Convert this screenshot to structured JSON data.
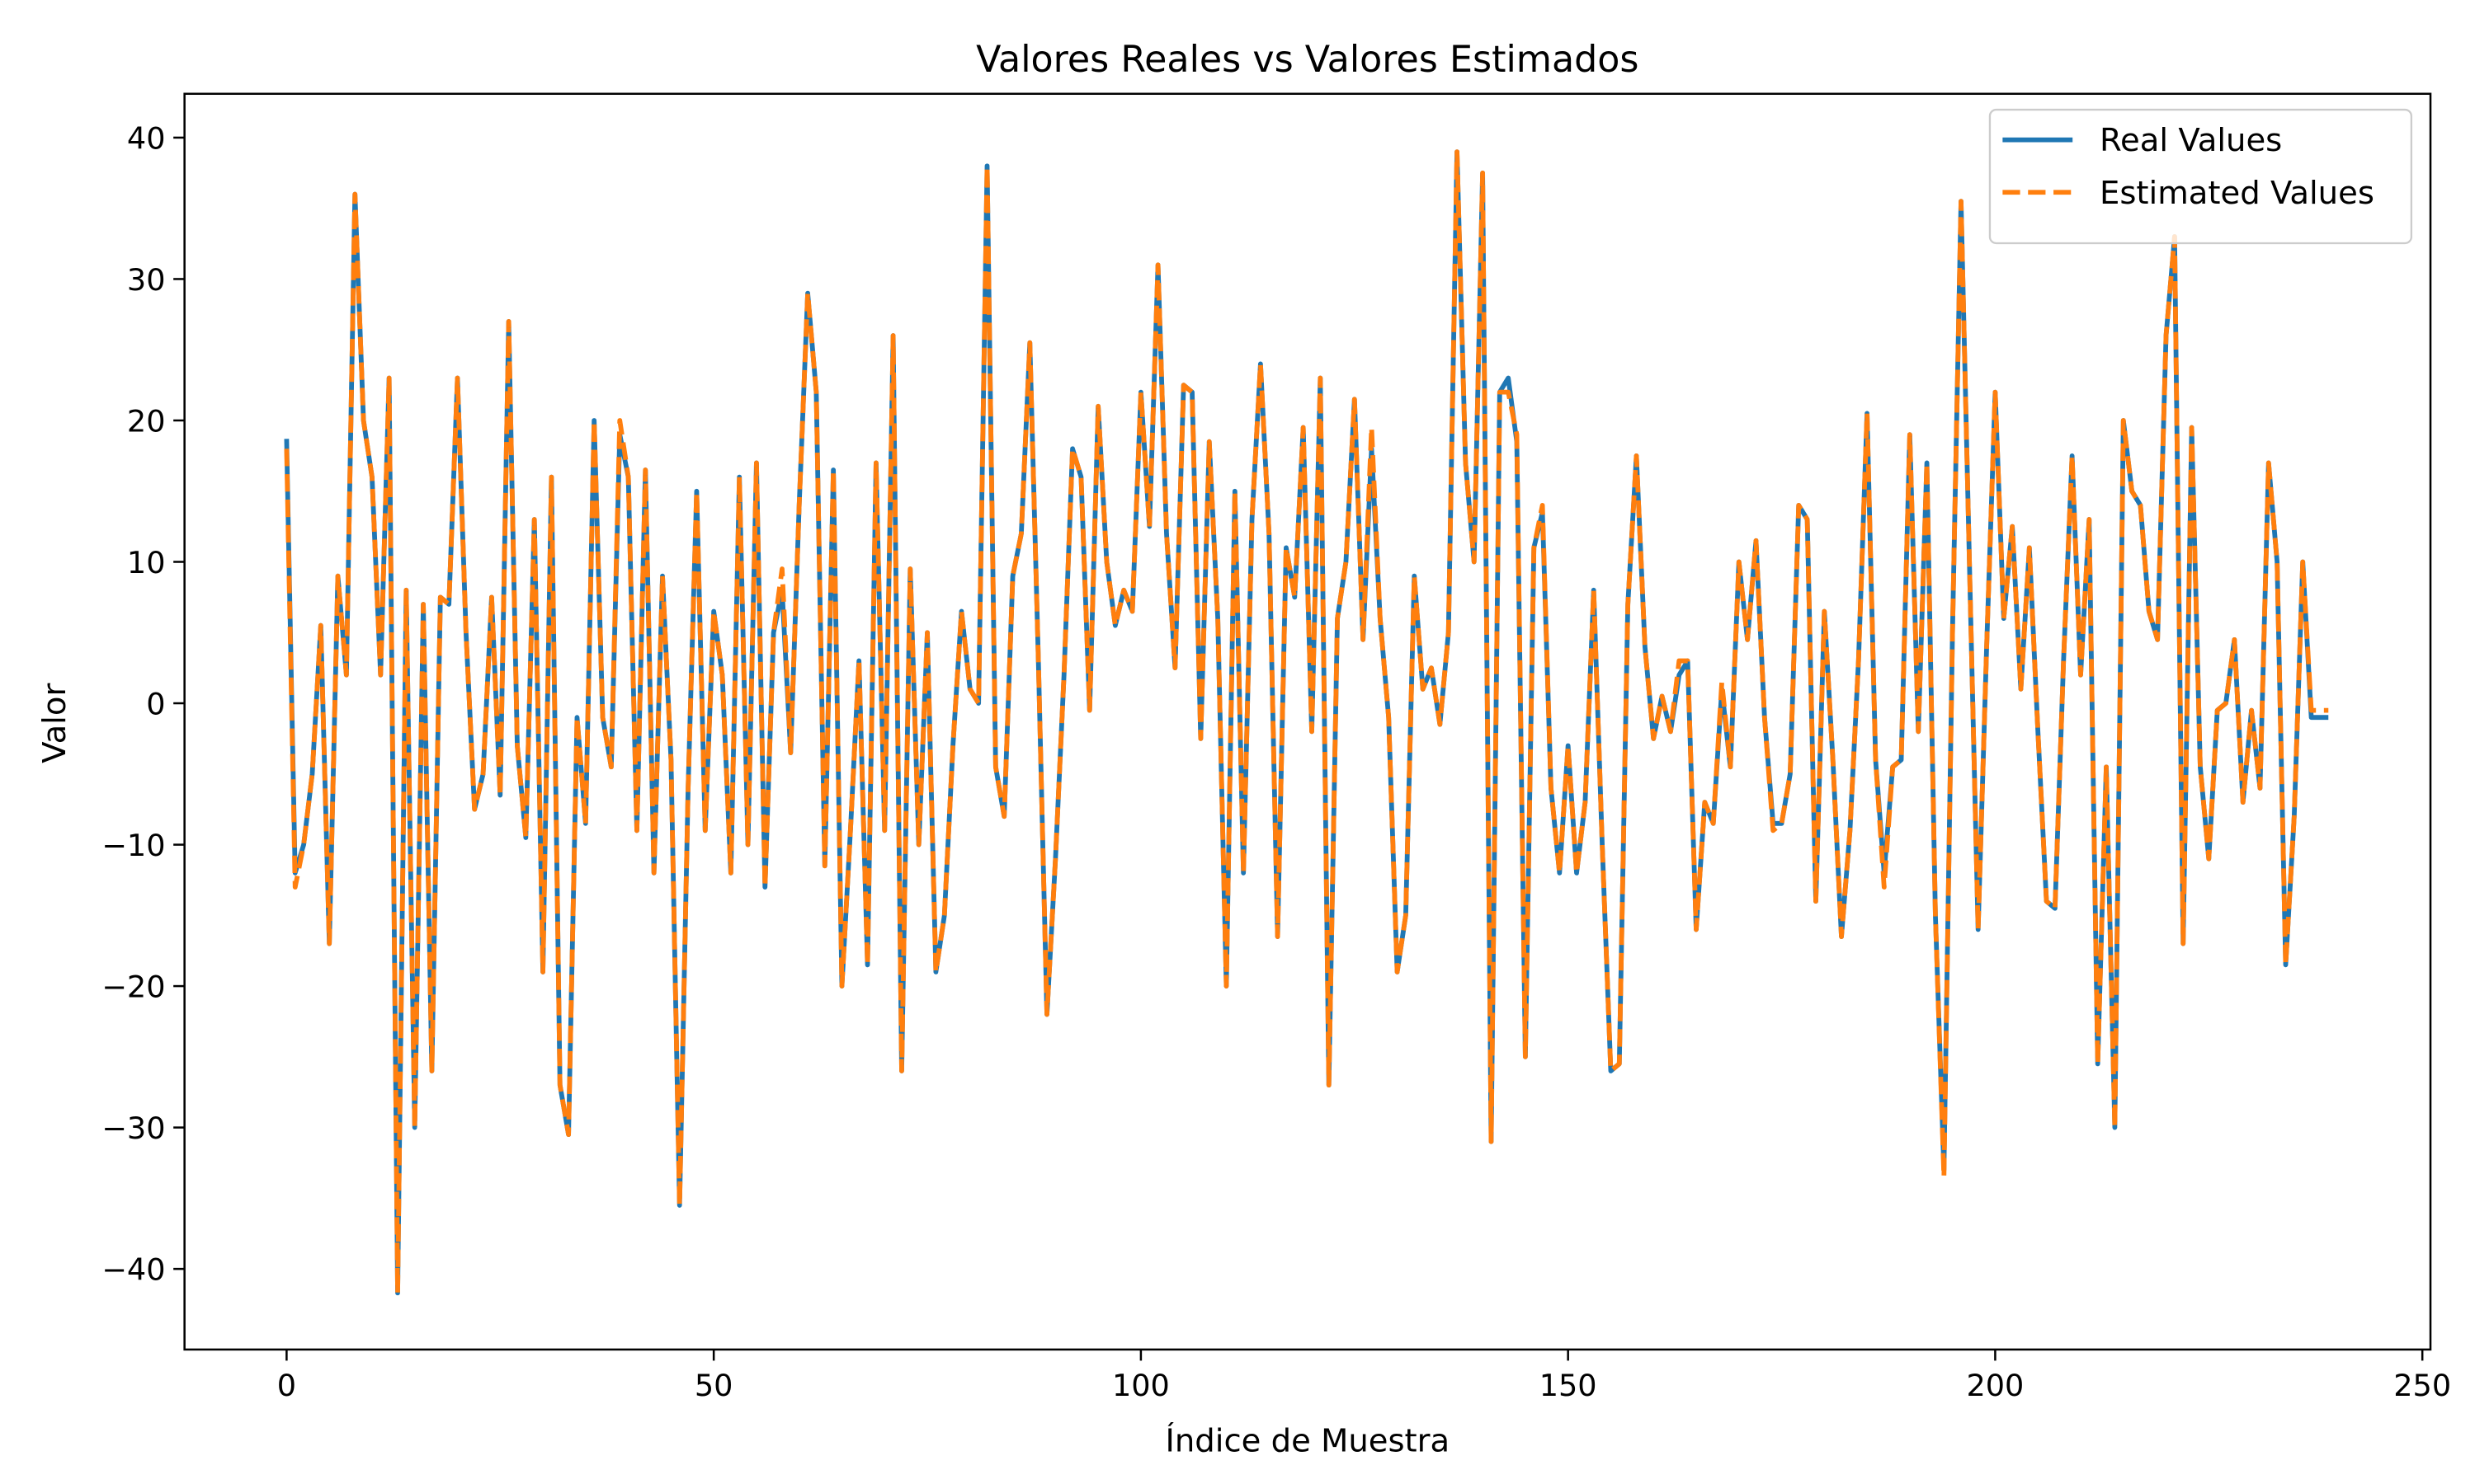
{
  "chart_data": {
    "type": "line",
    "title": "Valores Reales vs Valores Estimados",
    "x_label": "Índice de Muestra",
    "y_label": "Valor",
    "x": [
      0,
      1,
      2,
      3,
      4,
      5,
      6,
      7,
      8,
      9,
      10,
      11,
      12,
      13,
      14,
      15,
      16,
      17,
      18,
      19,
      20,
      21,
      22,
      23,
      24,
      25,
      26,
      27,
      28,
      29,
      30,
      31,
      32,
      33,
      34,
      35,
      36,
      37,
      38,
      39,
      40,
      41,
      42,
      43,
      44,
      45,
      46,
      47,
      48,
      49,
      50,
      51,
      52,
      53,
      54,
      55,
      56,
      57,
      58,
      59,
      60,
      61,
      62,
      63,
      64,
      65,
      66,
      67,
      68,
      69,
      70,
      71,
      72,
      73,
      74,
      75,
      76,
      77,
      78,
      79,
      80,
      81,
      82,
      83,
      84,
      85,
      86,
      87,
      88,
      89,
      90,
      91,
      92,
      93,
      94,
      95,
      96,
      97,
      98,
      99,
      100,
      101,
      102,
      103,
      104,
      105,
      106,
      107,
      108,
      109,
      110,
      111,
      112,
      113,
      114,
      115,
      116,
      117,
      118,
      119,
      120,
      121,
      122,
      123,
      124,
      125,
      126,
      127,
      128,
      129,
      130,
      131,
      132,
      133,
      134,
      135,
      136,
      137,
      138,
      139,
      140,
      141,
      142,
      143,
      144,
      145,
      146,
      147,
      148,
      149,
      150,
      151,
      152,
      153,
      154,
      155,
      156,
      157,
      158,
      159,
      160,
      161,
      162,
      163,
      164,
      165,
      166,
      167,
      168,
      169,
      170,
      171,
      172,
      173,
      174,
      175,
      176,
      177,
      178,
      179,
      180,
      181,
      182,
      183,
      184,
      185,
      186,
      187,
      188,
      189,
      190,
      191,
      192,
      193,
      194,
      195,
      196,
      197,
      198,
      199,
      200,
      201,
      202,
      203,
      204,
      205,
      206,
      207,
      208,
      209,
      210,
      211,
      212,
      213,
      214,
      215,
      216,
      217,
      218,
      219,
      220,
      221,
      222,
      223,
      224,
      225,
      226,
      227,
      228,
      229,
      230,
      231,
      232,
      233,
      234,
      235,
      236,
      237,
      238,
      239
    ],
    "series": [
      {
        "name": "Real Values",
        "color": "#1f77b4",
        "style": "solid",
        "values": [
          18.7,
          -12,
          -10,
          -5,
          5.5,
          -17,
          9,
          2,
          36,
          20,
          16,
          2,
          23,
          -41.7,
          8,
          -30,
          7,
          -26,
          7.5,
          7,
          23,
          5,
          -7.5,
          -5,
          7.5,
          -6.5,
          27,
          -3,
          -9.5,
          13,
          -19,
          16,
          -27,
          -30.5,
          -1,
          -8.5,
          20,
          -1,
          -4.5,
          19,
          16,
          -9,
          16.5,
          -12,
          9,
          -4,
          -35.5,
          -6,
          15,
          -9,
          6.5,
          2,
          -12,
          16,
          -10,
          17,
          -13,
          5,
          8,
          -3.5,
          14,
          29,
          22,
          -11.5,
          16.5,
          -20,
          -9,
          3,
          -18.5,
          17,
          -9,
          26,
          -26,
          9.5,
          -10,
          5,
          -19,
          -15,
          -3,
          6.5,
          1,
          0,
          38,
          -4.5,
          -8,
          9,
          12,
          25.5,
          3,
          -22,
          -11,
          2,
          18,
          16,
          -0.5,
          21,
          10,
          5.5,
          8,
          6.5,
          22,
          12.5,
          31,
          12,
          2.5,
          22.5,
          22,
          -2.5,
          18.5,
          6,
          -20,
          15,
          -12,
          13,
          24,
          12,
          -16.5,
          11,
          7.5,
          19.5,
          -2,
          23,
          -27,
          6,
          10,
          21.5,
          4.5,
          18,
          6,
          -1,
          -19,
          -15,
          9,
          1,
          2.5,
          -1.5,
          5,
          39,
          17,
          10,
          37.5,
          -31,
          22,
          23,
          18.5,
          -25,
          11,
          13.5,
          -6,
          -12,
          -3,
          -12,
          -7,
          8,
          -10,
          -26,
          -25.5,
          7,
          17.5,
          4,
          -2.5,
          0.5,
          -2,
          2,
          3,
          -16,
          -7,
          -8.5,
          1,
          -4.5,
          10,
          4.5,
          11.5,
          -1,
          -8.5,
          -8.5,
          -5,
          14,
          13,
          -14,
          6.5,
          -4,
          -16.5,
          -9,
          3,
          20.5,
          -4,
          -12,
          -4.5,
          -4,
          19,
          -2,
          17,
          -15,
          -33,
          5,
          35.5,
          9.5,
          -16,
          4,
          22,
          6,
          12.5,
          1,
          11,
          -2,
          -14,
          -14.5,
          3,
          17.5,
          2,
          13,
          -25.5,
          -4.5,
          -30,
          20,
          15,
          14,
          6.5,
          4.5,
          26,
          33,
          -17,
          19.5,
          -4.5,
          -11,
          -0.5,
          0,
          4.5,
          -7,
          -0.5,
          -6,
          17,
          10,
          -18.5,
          -8,
          10,
          -1,
          -1,
          -1
        ]
      },
      {
        "name": "Estimated Values",
        "color": "#ff7f0e",
        "style": "dashed",
        "values": [
          18,
          -13,
          -10,
          -5,
          5.5,
          -17,
          9,
          2,
          36,
          20,
          16,
          2,
          23,
          -41.7,
          8,
          -30,
          7,
          -26,
          7.5,
          7,
          23,
          5,
          -7.5,
          -5,
          7.5,
          -6.5,
          27,
          -3,
          -9.5,
          13,
          -19,
          16,
          -27,
          -30.5,
          -1,
          -8.5,
          20,
          -1,
          -4.5,
          20,
          16,
          -9,
          16.5,
          -12,
          9,
          -4,
          -35.5,
          -6,
          15,
          -9,
          6.5,
          2,
          -12,
          16,
          -10,
          17,
          -13,
          5,
          9.5,
          -3.5,
          14,
          29,
          22,
          -11.5,
          16.5,
          -20,
          -9,
          3,
          -18.5,
          17,
          -9,
          26,
          -26,
          9.5,
          -10,
          5,
          -19,
          -15,
          -3,
          6.5,
          1,
          0,
          38,
          -4.5,
          -8,
          9,
          12,
          25.5,
          3,
          -22,
          -11,
          2,
          18,
          16,
          -0.5,
          21,
          10,
          5.5,
          8,
          6.5,
          22,
          12.5,
          31,
          12,
          2.5,
          22.5,
          22,
          -2.5,
          18.5,
          6,
          -20,
          15,
          -12,
          13,
          24,
          12,
          -16.5,
          11,
          7.5,
          19.5,
          -2,
          23,
          -27,
          6,
          10,
          21.5,
          4.5,
          19.5,
          6,
          -1,
          -19,
          -15,
          9,
          1,
          2.5,
          -1.5,
          5,
          39,
          17,
          10,
          37.5,
          -31,
          22,
          22,
          19,
          -25,
          11,
          14,
          -6,
          -12,
          -3,
          -12,
          -7,
          8,
          -10,
          -26,
          -25.5,
          7,
          17.5,
          4,
          -2.5,
          0.5,
          -2,
          3,
          3,
          -16,
          -7,
          -8.5,
          1.5,
          -4.5,
          10,
          4.5,
          11.5,
          -1,
          -9,
          -8.5,
          -5,
          14,
          13,
          -14,
          6.5,
          -4,
          -16.5,
          -9,
          3,
          20.5,
          -4,
          -13,
          -4.5,
          -4,
          19,
          -2,
          17,
          -15,
          -33.5,
          5,
          35.5,
          9.5,
          -16,
          4,
          22,
          6,
          12.5,
          1,
          11,
          -2,
          -14,
          -14.5,
          3,
          17.5,
          2,
          13,
          -25.5,
          -4.5,
          -30,
          20,
          15,
          14,
          6.5,
          4.5,
          26,
          33,
          -17,
          19.5,
          -4.5,
          -11,
          -0.5,
          0,
          4.5,
          -7,
          -0.5,
          -6,
          17,
          10,
          -18.5,
          -8,
          10,
          -0.5,
          -0.5,
          -0.5
        ]
      }
    ],
    "xlim": [
      -11.95,
      250.95
    ],
    "ylim": [
      -45.7,
      43.1
    ],
    "xticks": [
      0,
      50,
      100,
      150,
      200,
      250
    ],
    "yticks": [
      {
        "value": -40,
        "label": "−40"
      },
      {
        "value": -30,
        "label": "−30"
      },
      {
        "value": -20,
        "label": "−20"
      },
      {
        "value": -10,
        "label": "−10"
      },
      0,
      10,
      20,
      30,
      40
    ],
    "legend": "upper right",
    "grid": false
  }
}
